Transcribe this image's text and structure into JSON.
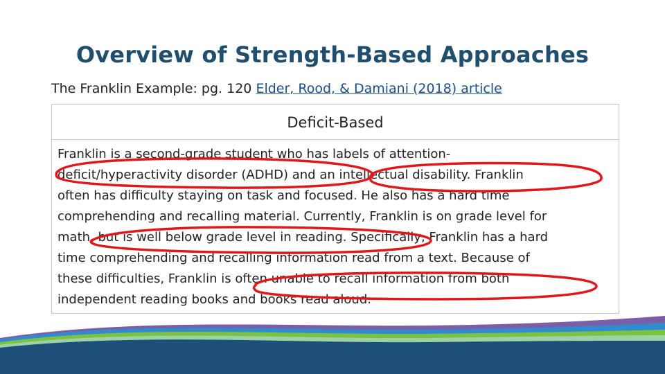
{
  "slide": {
    "title": "Overview of Strength-Based Approaches",
    "subtitle_prefix": "The Franklin Example: pg. 120 ",
    "subtitle_link": "Elder, Rood, & Damiani (2018) article"
  },
  "table": {
    "header": "Deficit-Based",
    "lines": [
      "Franklin is a second-grade student who has labels of attention-",
      "deficit/hyperactivity disorder (ADHD) and an intellectual disability. Franklin",
      "often has difficulty staying on task and focused. He also has a hard time",
      "comprehending and recalling material. Currently, Franklin is on grade level for",
      "math, but is well below grade level in reading. Specifically, Franklin has a hard",
      "time comprehending and recalling information read from a text. Because of",
      "these difficulties, Franklin is often unable to recall information from both",
      "independent reading books and books read aloud."
    ]
  },
  "colors": {
    "title": "#1f4e6e",
    "annotation_red": "#e0181b",
    "wave_navy": "#1d4f79",
    "wave_green": "#7dc142",
    "wave_blue": "#2f8ccf",
    "wave_purple": "#7a5ea8"
  }
}
